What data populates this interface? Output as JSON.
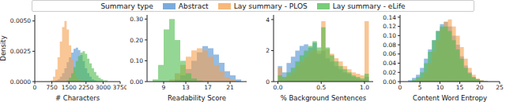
{
  "legend_title": "Summary type",
  "chart_data": [
    {
      "type": "histogram",
      "xlabel": "# Characters",
      "ylabel": "Density",
      "xlim": [
        0,
        3750
      ],
      "xticks": [
        0,
        750,
        1500,
        2250,
        3000,
        3750
      ],
      "ylim": [
        0,
        0.0055
      ],
      "yticks": [
        {
          "value": 0,
          "label": "0.0000"
        },
        {
          "value": 0.0025,
          "label": "0.0025"
        },
        {
          "value": 0.005,
          "label": "0.0050"
        }
      ],
      "bins": [
        500,
        600,
        700,
        800,
        900,
        1000,
        1100,
        1200,
        1300,
        1400,
        1500,
        1600,
        1700,
        1800,
        1900,
        2000,
        2100,
        2200,
        2300,
        2400,
        2500,
        2600,
        2700,
        2800,
        2900,
        3000,
        3100,
        3200,
        3300,
        3400,
        3500
      ],
      "series": [
        {
          "name": "Abstract",
          "color": "#4f8fd0",
          "values": [
            0,
            0,
            0,
            0,
            0.0001,
            0.0002,
            0.0004,
            0.0007,
            0.0011,
            0.0016,
            0.002,
            0.0024,
            0.0027,
            0.0028,
            0.0026,
            0.0022,
            0.0017,
            0.0011,
            0.0007,
            0.0004,
            0.0002,
            0.0001,
            0,
            0,
            0,
            0,
            0,
            0,
            0,
            0
          ]
        },
        {
          "name": "Lay summary - PLOS",
          "color": "#f5a04e",
          "values": [
            0,
            0,
            0.0001,
            0.0004,
            0.001,
            0.002,
            0.0033,
            0.0045,
            0.005,
            0.0043,
            0.003,
            0.0018,
            0.0009,
            0.0004,
            0.0002,
            0.0001,
            0,
            0,
            0,
            0,
            0,
            0,
            0,
            0,
            0,
            0,
            0,
            0,
            0,
            0
          ]
        },
        {
          "name": "Lay summary - eLife",
          "color": "#4cbb4c",
          "values": [
            0,
            0,
            0,
            0,
            0,
            0,
            0,
            0,
            0,
            0.0001,
            0.0003,
            0.0007,
            0.0012,
            0.0017,
            0.0021,
            0.0024,
            0.0025,
            0.0023,
            0.0019,
            0.0015,
            0.0011,
            0.0008,
            0.0005,
            0.0003,
            0.0002,
            0.0001,
            0.0001,
            0,
            0,
            0
          ]
        }
      ]
    },
    {
      "type": "histogram",
      "xlabel": "Readability Score",
      "xlim": [
        6,
        24
      ],
      "xticks": [
        9,
        13,
        17,
        21
      ],
      "ylim": [
        0,
        0.32
      ],
      "yticks": [
        {
          "value": 0,
          "label": "0.00"
        },
        {
          "value": 0.1,
          "label": "0.10"
        },
        {
          "value": 0.2,
          "label": "0.20"
        },
        {
          "value": 0.3,
          "label": "0.30"
        }
      ],
      "bins": [
        7,
        8,
        9,
        10,
        11,
        12,
        13,
        14,
        15,
        16,
        17,
        18,
        19,
        20,
        21,
        22,
        23
      ],
      "series": [
        {
          "name": "Abstract",
          "color": "#4f8fd0",
          "values": [
            0,
            0,
            0,
            0,
            0.01,
            0.03,
            0.06,
            0.1,
            0.14,
            0.17,
            0.16,
            0.13,
            0.09,
            0.05,
            0.03,
            0.01
          ]
        },
        {
          "name": "Lay summary - PLOS",
          "color": "#f5a04e",
          "values": [
            0,
            0,
            0,
            0.01,
            0.04,
            0.08,
            0.12,
            0.15,
            0.16,
            0.15,
            0.12,
            0.08,
            0.05,
            0.02,
            0.01,
            0
          ]
        },
        {
          "name": "Lay summary - eLife",
          "color": "#4cbb4c",
          "values": [
            0.01,
            0.08,
            0.25,
            0.3,
            0.2,
            0.1,
            0.04,
            0.015,
            0.005,
            0,
            0,
            0,
            0,
            0,
            0,
            0
          ]
        }
      ]
    },
    {
      "type": "histogram",
      "xlabel": "% Background Sentences",
      "xlim": [
        -0.05,
        1.1
      ],
      "xticks": [
        {
          "value": 0,
          "label": "0.0"
        },
        {
          "value": 0.5,
          "label": "0.5"
        },
        {
          "value": 1,
          "label": "1.0"
        }
      ],
      "ylim": [
        0,
        4.3
      ],
      "yticks": [
        0,
        2,
        4
      ],
      "bins": [
        0,
        0.05,
        0.1,
        0.15,
        0.2,
        0.25,
        0.3,
        0.35,
        0.4,
        0.45,
        0.5,
        0.55,
        0.6,
        0.65,
        0.7,
        0.75,
        0.8,
        0.85,
        0.9,
        0.95,
        1.0,
        1.05
      ],
      "series": [
        {
          "name": "Abstract",
          "color": "#4f8fd0",
          "values": [
            1.0,
            0.6,
            1.2,
            1.6,
            2.0,
            2.3,
            2.4,
            2.2,
            2.5,
            1.8,
            2.0,
            1.5,
            1.3,
            1.0,
            0.8,
            0.6,
            0.5,
            0.3,
            0.2,
            0.1,
            0.3
          ]
        },
        {
          "name": "Lay summary - PLOS",
          "color": "#f5a04e",
          "values": [
            0.9,
            0.2,
            0.4,
            0.6,
            1.0,
            1.3,
            1.6,
            1.9,
            2.1,
            2.0,
            3.9,
            2.1,
            1.8,
            1.5,
            1.3,
            1.0,
            0.8,
            0.6,
            0.5,
            0.4,
            3.9
          ]
        },
        {
          "name": "Lay summary - eLife",
          "color": "#4cbb4c",
          "values": [
            0.4,
            0.3,
            0.6,
            0.9,
            1.3,
            1.7,
            2.0,
            2.3,
            2.6,
            2.2,
            3.5,
            2.2,
            1.7,
            1.3,
            1.0,
            0.8,
            0.6,
            0.4,
            0.3,
            0.2,
            0.5
          ]
        }
      ]
    },
    {
      "type": "histogram",
      "xlabel": "Content Word Entropy",
      "xlim": [
        0,
        25
      ],
      "xticks": [
        0,
        5,
        10,
        15,
        20,
        25
      ],
      "ylim": [
        0,
        0.145
      ],
      "yticks": [
        {
          "value": 0,
          "label": "0.00"
        },
        {
          "value": 0.02,
          "label": "0.02"
        },
        {
          "value": 0.04,
          "label": "0.04"
        },
        {
          "value": 0.06,
          "label": "0.06"
        },
        {
          "value": 0.08,
          "label": "0.08"
        },
        {
          "value": 0.1,
          "label": "0.10"
        },
        {
          "value": 0.12,
          "label": "0.12"
        },
        {
          "value": 0.14,
          "label": "0.14"
        }
      ],
      "bins": [
        2,
        3,
        4,
        5,
        6,
        7,
        8,
        9,
        10,
        11,
        12,
        13,
        14,
        15,
        16,
        17,
        18,
        19,
        20,
        21,
        22
      ],
      "series": [
        {
          "name": "Abstract",
          "color": "#4f8fd0",
          "values": [
            0.003,
            0.008,
            0.015,
            0.03,
            0.05,
            0.07,
            0.09,
            0.11,
            0.125,
            0.13,
            0.12,
            0.1,
            0.08,
            0.055,
            0.035,
            0.02,
            0.01,
            0.005,
            0.002,
            0.001
          ]
        },
        {
          "name": "Lay summary - PLOS",
          "color": "#f5a04e",
          "values": [
            0,
            0.001,
            0.003,
            0.008,
            0.02,
            0.04,
            0.065,
            0.09,
            0.115,
            0.13,
            0.135,
            0.12,
            0.1,
            0.075,
            0.05,
            0.03,
            0.015,
            0.007,
            0.003,
            0.001
          ]
        },
        {
          "name": "Lay summary - eLife",
          "color": "#4cbb4c",
          "values": [
            0.001,
            0.004,
            0.01,
            0.02,
            0.04,
            0.065,
            0.09,
            0.11,
            0.12,
            0.12,
            0.11,
            0.09,
            0.07,
            0.05,
            0.03,
            0.018,
            0.01,
            0.005,
            0.002,
            0.001
          ]
        }
      ]
    }
  ]
}
